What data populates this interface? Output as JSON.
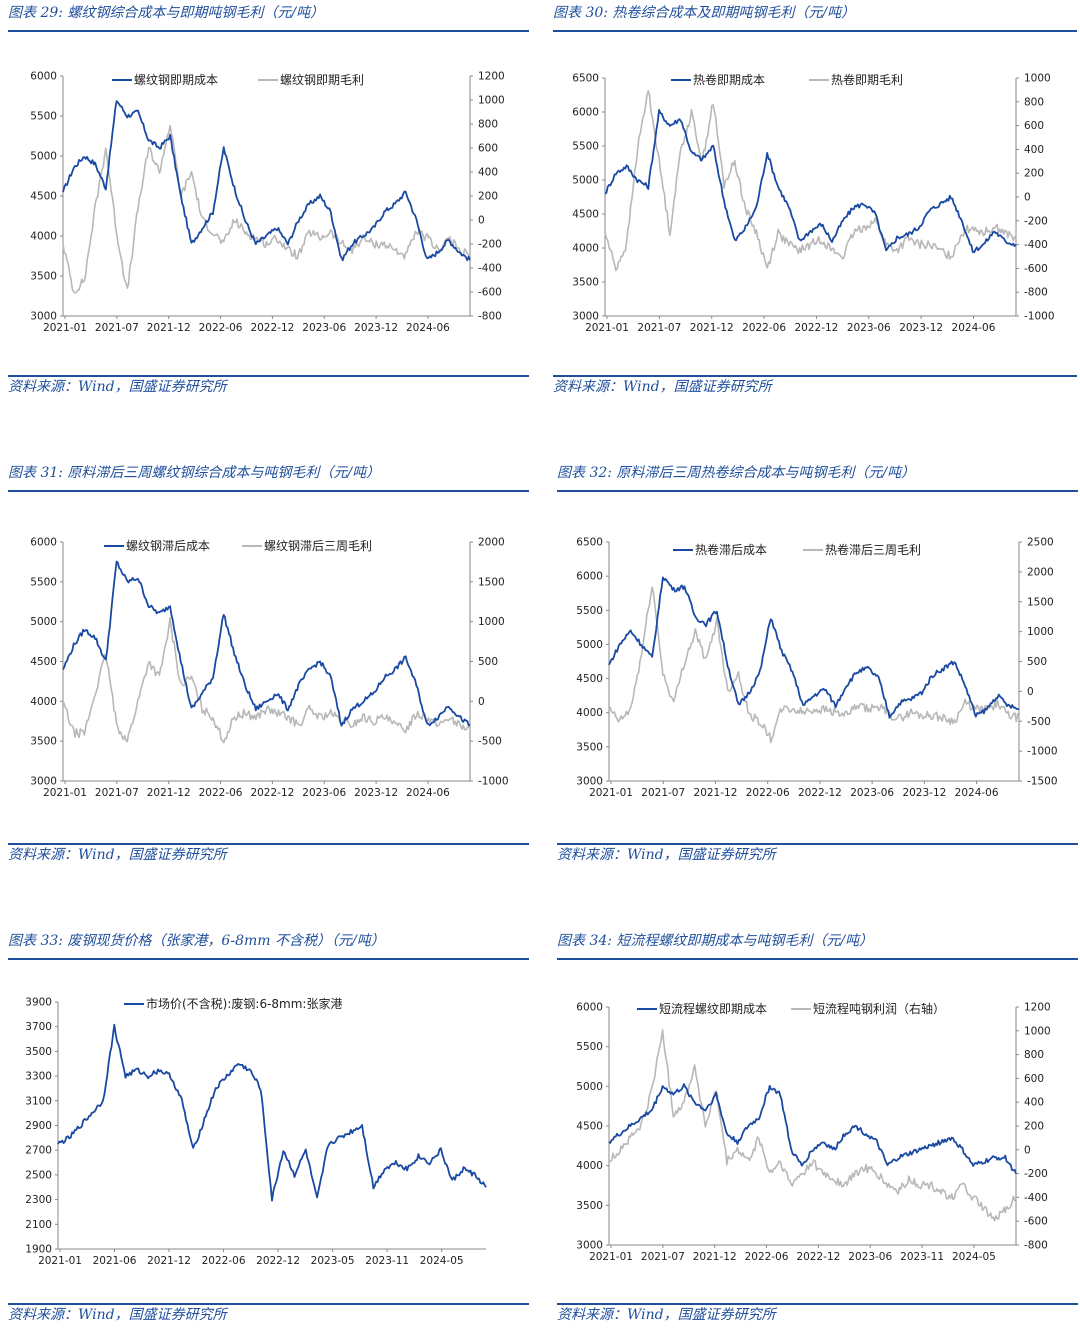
{
  "colors": {
    "series1": "#1a49a3",
    "series2": "#b8b8b8",
    "accent": "#1f4e9c"
  },
  "panels": [
    {
      "title": "图表 29:  螺纹钢综合成本与即期吨钢毛利（元/吨）",
      "source": "资料来源：Wind，国盛证券研究所"
    },
    {
      "title": "图表 30:  热卷综合成本及即期吨钢毛利（元/吨）",
      "source": "资料来源：Wind，国盛证券研究所"
    },
    {
      "title": "图表 31:  原料滞后三周螺纹钢综合成本与吨钢毛利（元/吨）",
      "source": "资料来源：Wind，国盛证券研究所"
    },
    {
      "title": "图表 32:  原料滞后三周热卷综合成本与吨钢毛利（元/吨）",
      "source": "资料来源：Wind，国盛证券研究所"
    },
    {
      "title": "图表 33:  废钢现货价格（张家港，6-8mm 不含税）（元/吨）",
      "source": "资料来源：Wind，国盛证券研究所"
    },
    {
      "title": "图表 34:  短流程螺纹即期成本与吨钢毛利（元/吨）",
      "source": "资料来源：Wind，国盛证券研究所"
    }
  ],
  "chart_data": [
    {
      "type": "line",
      "title": "螺纹钢综合成本与即期吨钢毛利（元/吨）",
      "x_ticks": [
        "2021-01",
        "2021-07",
        "2021-12",
        "2022-06",
        "2022-12",
        "2023-06",
        "2023-12",
        "2024-06"
      ],
      "ylim": [
        3000,
        6000
      ],
      "y_ticks": [
        "3000",
        "3500",
        "4000",
        "4500",
        "5000",
        "5500",
        "6000"
      ],
      "y2lim": [
        -800,
        1200
      ],
      "y2_ticks": [
        "-800",
        "-600",
        "-400",
        "-200",
        "0",
        "200",
        "400",
        "600",
        "800",
        "1000",
        "1200"
      ],
      "series": [
        {
          "name": "螺纹钢即期成本",
          "axis": "left",
          "values": [
            4550,
            4850,
            5000,
            4900,
            4600,
            5700,
            5500,
            5550,
            5200,
            5100,
            5250,
            4500,
            3900,
            4100,
            4300,
            5100,
            4600,
            4200,
            3900,
            4000,
            4100,
            3900,
            4200,
            4400,
            4500,
            4300,
            3700,
            3900,
            4000,
            4100,
            4300,
            4400,
            4550,
            4200,
            3700,
            3800,
            3950,
            3800,
            3700
          ]
        },
        {
          "name": "螺纹钢即期毛利",
          "axis": "right",
          "values": [
            -200,
            -600,
            -500,
            100,
            600,
            -100,
            -600,
            100,
            600,
            400,
            800,
            200,
            400,
            0,
            -100,
            -200,
            0,
            -100,
            -150,
            -200,
            -150,
            -250,
            -300,
            -100,
            -150,
            -100,
            -200,
            -250,
            -150,
            -200,
            -200,
            -250,
            -300,
            -100,
            -150,
            -250,
            -150,
            -250,
            -300
          ]
        }
      ]
    },
    {
      "type": "line",
      "title": "热卷综合成本及即期吨钢毛利（元/吨）",
      "x_ticks": [
        "2021-01",
        "2021-07",
        "2021-12",
        "2022-06",
        "2022-12",
        "2023-06",
        "2023-12",
        "2024-06"
      ],
      "ylim": [
        3000,
        6500
      ],
      "y_ticks": [
        "3000",
        "3500",
        "4000",
        "4500",
        "5000",
        "5500",
        "6000",
        "6500"
      ],
      "y2lim": [
        -1000,
        1000
      ],
      "y2_ticks": [
        "-1000",
        "-800",
        "-600",
        "-400",
        "-200",
        "0",
        "200",
        "400",
        "600",
        "800",
        "1000"
      ],
      "series": [
        {
          "name": "热卷即期成本",
          "axis": "left",
          "values": [
            4800,
            5100,
            5200,
            5000,
            4900,
            6000,
            5800,
            5900,
            5400,
            5300,
            5500,
            4700,
            4100,
            4300,
            4600,
            5400,
            4900,
            4600,
            4100,
            4250,
            4350,
            4100,
            4400,
            4600,
            4650,
            4500,
            3950,
            4150,
            4200,
            4300,
            4550,
            4650,
            4750,
            4400,
            3950,
            4050,
            4250,
            4100,
            4050
          ]
        },
        {
          "name": "热卷即期毛利",
          "axis": "right",
          "values": [
            -300,
            -600,
            -400,
            400,
            900,
            300,
            -300,
            400,
            700,
            300,
            800,
            100,
            300,
            -100,
            -300,
            -600,
            -300,
            -400,
            -450,
            -400,
            -350,
            -450,
            -500,
            -300,
            -250,
            -200,
            -400,
            -450,
            -350,
            -400,
            -400,
            -450,
            -500,
            -300,
            -250,
            -300,
            -250,
            -300,
            -350
          ]
        }
      ]
    },
    {
      "type": "line",
      "title": "原料滞后三周螺纹钢综合成本与吨钢毛利（元/吨）",
      "x_ticks": [
        "2021-01",
        "2021-07",
        "2021-12",
        "2022-06",
        "2022-12",
        "2023-06",
        "2023-12",
        "2024-06"
      ],
      "ylim": [
        3000,
        6000
      ],
      "y_ticks": [
        "3000",
        "3500",
        "4000",
        "4500",
        "5000",
        "5500",
        "6000"
      ],
      "y2lim": [
        -1000,
        2000
      ],
      "y2_ticks": [
        "-1000",
        "-500",
        "0",
        "500",
        "1000",
        "1500",
        "2000"
      ],
      "series": [
        {
          "name": "螺纹钢滞后成本",
          "axis": "left",
          "values": [
            4400,
            4700,
            4900,
            4800,
            4500,
            5750,
            5500,
            5550,
            5200,
            5100,
            5200,
            4500,
            3900,
            4100,
            4300,
            5100,
            4600,
            4200,
            3900,
            4000,
            4100,
            3900,
            4200,
            4400,
            4500,
            4300,
            3700,
            3900,
            4000,
            4100,
            4300,
            4400,
            4550,
            4200,
            3700,
            3800,
            3950,
            3800,
            3700
          ]
        },
        {
          "name": "螺纹钢滞后三周毛利",
          "axis": "right",
          "values": [
            0,
            -400,
            -400,
            100,
            600,
            -300,
            -500,
            0,
            500,
            300,
            1000,
            200,
            300,
            -100,
            -200,
            -500,
            -200,
            -150,
            -200,
            -100,
            -150,
            -200,
            -300,
            -100,
            -200,
            -150,
            -250,
            -300,
            -200,
            -250,
            -200,
            -300,
            -350,
            -150,
            -200,
            -300,
            -200,
            -300,
            -350
          ]
        }
      ]
    },
    {
      "type": "line",
      "title": "原料滞后三周热卷综合成本与吨钢毛利（元/吨）",
      "x_ticks": [
        "2021-01",
        "2021-07",
        "2021-12",
        "2022-06",
        "2022-12",
        "2023-06",
        "2023-12",
        "2024-06"
      ],
      "ylim": [
        3000,
        6500
      ],
      "y_ticks": [
        "3000",
        "3500",
        "4000",
        "4500",
        "5000",
        "5500",
        "6000",
        "6500"
      ],
      "y2lim": [
        -1500,
        2500
      ],
      "y2_ticks": [
        "-1500",
        "-1000",
        "-500",
        "0",
        "500",
        "1000",
        "1500",
        "2000",
        "2500"
      ],
      "series": [
        {
          "name": "热卷滞后成本",
          "axis": "left",
          "values": [
            4700,
            5000,
            5200,
            5000,
            4800,
            6000,
            5800,
            5850,
            5400,
            5300,
            5500,
            4700,
            4100,
            4300,
            4600,
            5400,
            4900,
            4600,
            4100,
            4250,
            4350,
            4100,
            4400,
            4600,
            4650,
            4500,
            3950,
            4150,
            4200,
            4300,
            4550,
            4650,
            4750,
            4400,
            3950,
            4050,
            4250,
            4100,
            4050
          ]
        },
        {
          "name": "热卷滞后三周毛利",
          "axis": "right",
          "values": [
            -300,
            -500,
            -300,
            600,
            1800,
            300,
            -200,
            500,
            1000,
            500,
            1200,
            0,
            300,
            -400,
            -500,
            -800,
            -300,
            -300,
            -350,
            -300,
            -300,
            -350,
            -400,
            -250,
            -300,
            -250,
            -400,
            -450,
            -350,
            -400,
            -400,
            -450,
            -500,
            -200,
            -300,
            -300,
            -200,
            -400,
            -450
          ]
        }
      ]
    },
    {
      "type": "line",
      "title": "废钢现货价格（张家港，6-8mm 不含税）（元/吨）",
      "x_ticks": [
        "2021-01",
        "2021-06",
        "2021-12",
        "2022-06",
        "2022-12",
        "2023-05",
        "2023-11",
        "2024-05"
      ],
      "ylim": [
        1900,
        3900
      ],
      "y_ticks": [
        "1900",
        "2100",
        "2300",
        "2500",
        "2700",
        "2900",
        "3100",
        "3300",
        "3500",
        "3700",
        "3900"
      ],
      "series": [
        {
          "name": "市场价(不含税):废钢:6-8mm:张家港",
          "axis": "left",
          "values": [
            2750,
            2800,
            2900,
            3000,
            3100,
            3700,
            3300,
            3350,
            3300,
            3350,
            3300,
            3100,
            2700,
            2950,
            3200,
            3300,
            3400,
            3350,
            3200,
            2300,
            2700,
            2500,
            2700,
            2300,
            2750,
            2800,
            2850,
            2900,
            2400,
            2550,
            2600,
            2550,
            2650,
            2600,
            2700,
            2450,
            2550,
            2500,
            2400
          ]
        }
      ]
    },
    {
      "type": "line",
      "title": "短流程螺纹即期成本与吨钢毛利（元/吨）",
      "x_ticks": [
        "2021-01",
        "2021-07",
        "2021-12",
        "2022-06",
        "2022-12",
        "2023-06",
        "2023-11",
        "2024-05"
      ],
      "ylim": [
        3000,
        6000
      ],
      "y_ticks": [
        "3000",
        "3500",
        "4000",
        "4500",
        "5000",
        "5500",
        "6000"
      ],
      "y2lim": [
        -800,
        1200
      ],
      "y2_ticks": [
        "-800",
        "-600",
        "-400",
        "-200",
        "0",
        "200",
        "400",
        "600",
        "800",
        "1000",
        "1200"
      ],
      "series": [
        {
          "name": "短流程螺纹即期成本",
          "axis": "left",
          "values": [
            4300,
            4400,
            4500,
            4600,
            4700,
            5000,
            4900,
            5000,
            4800,
            4700,
            4900,
            4400,
            4300,
            4500,
            4600,
            5000,
            4900,
            4200,
            4000,
            4200,
            4300,
            4200,
            4400,
            4500,
            4400,
            4300,
            4000,
            4100,
            4150,
            4200,
            4250,
            4300,
            4350,
            4200,
            4000,
            4050,
            4100,
            4100,
            3900
          ]
        },
        {
          "name": "短流程吨钢利润（右轴）",
          "axis": "right",
          "values": [
            -100,
            0,
            100,
            200,
            500,
            1000,
            300,
            400,
            700,
            200,
            500,
            -100,
            0,
            -100,
            100,
            -200,
            -100,
            -300,
            -200,
            -100,
            -200,
            -250,
            -300,
            -200,
            -150,
            -200,
            -300,
            -350,
            -250,
            -300,
            -300,
            -350,
            -400,
            -300,
            -400,
            -500,
            -600,
            -500,
            -400
          ]
        }
      ]
    }
  ]
}
